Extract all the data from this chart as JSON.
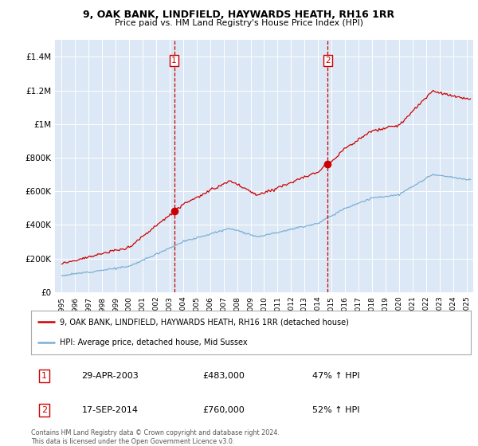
{
  "title": "9, OAK BANK, LINDFIELD, HAYWARDS HEATH, RH16 1RR",
  "subtitle": "Price paid vs. HM Land Registry's House Price Index (HPI)",
  "red_label": "9, OAK BANK, LINDFIELD, HAYWARDS HEATH, RH16 1RR (detached house)",
  "blue_label": "HPI: Average price, detached house, Mid Sussex",
  "sale1_label": "1",
  "sale1_date": "29-APR-2003",
  "sale1_price": "£483,000",
  "sale1_hpi": "47% ↑ HPI",
  "sale1_x": 2003.33,
  "sale1_y": 483000,
  "sale2_label": "2",
  "sale2_date": "17-SEP-2014",
  "sale2_price": "£760,000",
  "sale2_hpi": "52% ↑ HPI",
  "sale2_x": 2014.72,
  "sale2_y": 760000,
  "ylim": [
    0,
    1500000
  ],
  "xlim": [
    1994.5,
    2025.5
  ],
  "yticks": [
    0,
    200000,
    400000,
    600000,
    800000,
    1000000,
    1200000,
    1400000
  ],
  "ytick_labels": [
    "£0",
    "£200K",
    "£400K",
    "£600K",
    "£800K",
    "£1M",
    "£1.2M",
    "£1.4M"
  ],
  "xtick_years": [
    1995,
    1996,
    1997,
    1998,
    1999,
    2000,
    2001,
    2002,
    2003,
    2004,
    2005,
    2006,
    2007,
    2008,
    2009,
    2010,
    2011,
    2012,
    2013,
    2014,
    2015,
    2016,
    2017,
    2018,
    2019,
    2020,
    2021,
    2022,
    2023,
    2024,
    2025
  ],
  "background_color": "#ffffff",
  "plot_bg": "#dce8f5",
  "red_color": "#cc0000",
  "blue_color": "#7bafd4",
  "dashed_color": "#cc0000",
  "footnote": "Contains HM Land Registry data © Crown copyright and database right 2024.\nThis data is licensed under the Open Government Licence v3.0."
}
